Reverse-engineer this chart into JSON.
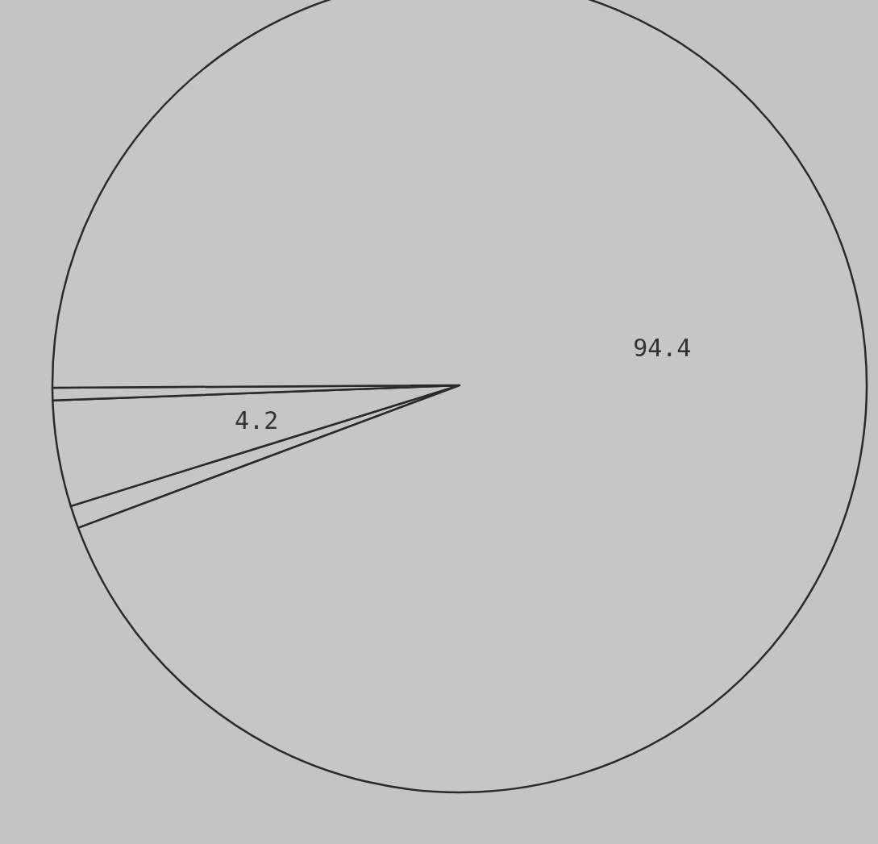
{
  "chart_data": {
    "type": "pie",
    "categories": [
      null,
      null,
      null,
      null
    ],
    "values": [
      0.9,
      4.2,
      0.5,
      94.4
    ],
    "value_labels": [
      null,
      "4.2",
      null,
      "94.4"
    ],
    "colors": [
      "#c6c6c6",
      "#c6c6c6",
      "#c6c6c6",
      "#c6c6c6"
    ]
  }
}
